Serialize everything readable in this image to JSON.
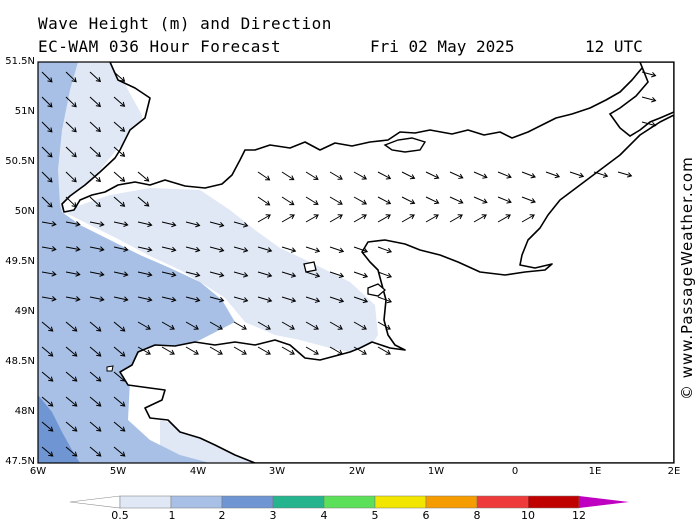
{
  "title": {
    "line1": "Wave Height (m) and Direction",
    "line2": "EC-WAM 036 Hour Forecast",
    "date": "Fri 02 May 2025",
    "time": "12 UTC"
  },
  "axes": {
    "lat_labels": [
      "51.5N",
      "51N",
      "50.5N",
      "50N",
      "49.5N",
      "49N",
      "48.5N",
      "48N",
      "47.5N"
    ],
    "lon_labels": [
      "6W",
      "5W",
      "4W",
      "3W",
      "2W",
      "1W",
      "0",
      "1E",
      "2E"
    ]
  },
  "legend": {
    "labels": [
      "0.5",
      "1",
      "2",
      "3",
      "4",
      "5",
      "6",
      "8",
      "10",
      "12"
    ],
    "colors": [
      "#e0e8f6",
      "#a8c0e6",
      "#6f96d2",
      "#26b48f",
      "#5ce05a",
      "#f2e600",
      "#f59c00",
      "#ee3a3a",
      "#c00000",
      "#c000c0"
    ]
  },
  "credit": "© www.PassageWeather.com",
  "map": {
    "sea_colors": {
      "light": "#e0e8f6",
      "medium": "#a8c0e6",
      "dark": "#6f96d2",
      "land": "#ffffff"
    },
    "arrow_icon": "wave-direction-arrow-icon"
  }
}
